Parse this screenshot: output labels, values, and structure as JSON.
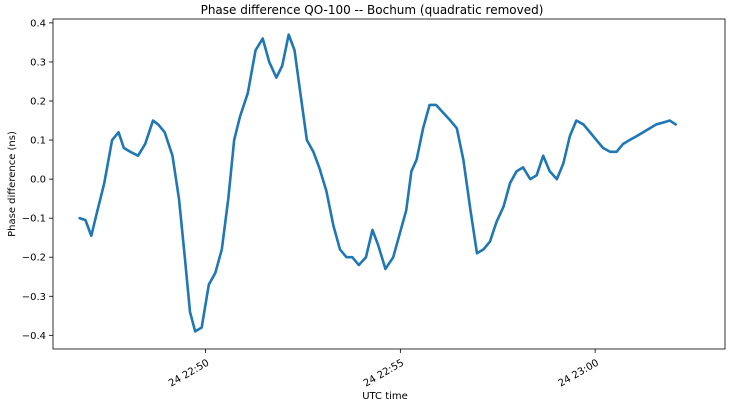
{
  "chart_data": {
    "type": "line",
    "title": "Phase difference QO-100 -- Bochum (quadratic removed)",
    "xlabel": "UTC time",
    "ylabel": "Phase difference (ns)",
    "xlim": [
      "24 22:46:05",
      "24 23:03:20"
    ],
    "ylim": [
      -0.435,
      0.41
    ],
    "x_ticks": [
      {
        "value": "24 22:50:00",
        "label": "24 22:50"
      },
      {
        "value": "24 22:55:00",
        "label": "24 22:55"
      },
      {
        "value": "24 23:00:00",
        "label": "24 23:00"
      }
    ],
    "y_ticks": [
      {
        "value": -0.4,
        "label": "−0.4"
      },
      {
        "value": -0.3,
        "label": "−0.3"
      },
      {
        "value": -0.2,
        "label": "−0.2"
      },
      {
        "value": -0.1,
        "label": "−0.1"
      },
      {
        "value": 0.0,
        "label": "0.0"
      },
      {
        "value": 0.1,
        "label": "0.1"
      },
      {
        "value": 0.2,
        "label": "0.2"
      },
      {
        "value": 0.3,
        "label": "0.3"
      },
      {
        "value": 0.4,
        "label": "0.4"
      }
    ],
    "grid": false,
    "series": [
      {
        "color": "#1f77b4",
        "x": [
          "24 22:46:46",
          "24 22:46:55",
          "24 22:47:04",
          "24 22:47:12",
          "24 22:47:24",
          "24 22:47:36",
          "24 22:47:46",
          "24 22:47:54",
          "24 22:48:04",
          "24 22:48:16",
          "24 22:48:27",
          "24 22:48:39",
          "24 22:48:47",
          "24 22:48:57",
          "24 22:49:09",
          "24 22:49:19",
          "24 22:49:28",
          "24 22:49:36",
          "24 22:49:44",
          "24 22:49:54",
          "24 22:50:05",
          "24 22:50:15",
          "24 22:50:25",
          "24 22:50:35",
          "24 22:50:44",
          "24 22:50:53",
          "24 22:51:05",
          "24 22:51:17",
          "24 22:51:28",
          "24 22:51:38",
          "24 22:51:49",
          "24 22:51:58",
          "24 22:52:08",
          "24 22:52:17",
          "24 22:52:26",
          "24 22:52:36",
          "24 22:52:46",
          "24 22:52:55",
          "24 22:53:06",
          "24 22:53:17",
          "24 22:53:27",
          "24 22:53:37",
          "24 22:53:46",
          "24 22:53:56",
          "24 22:54:07",
          "24 22:54:17",
          "24 22:54:26",
          "24 22:54:37",
          "24 22:54:49",
          "24 22:54:59",
          "24 22:55:09",
          "24 22:55:17",
          "24 22:55:25",
          "24 22:55:35",
          "24 22:55:45",
          "24 22:55:55",
          "24 22:56:06",
          "24 22:56:17",
          "24 22:56:27",
          "24 22:56:37",
          "24 22:56:48",
          "24 22:56:58",
          "24 22:57:08",
          "24 22:57:18",
          "24 22:57:28",
          "24 22:57:39",
          "24 22:57:49",
          "24 22:57:59",
          "24 22:58:09",
          "24 22:58:20",
          "24 22:58:30",
          "24 22:58:40",
          "24 22:58:50",
          "24 22:59:01",
          "24 22:59:11",
          "24 22:59:21",
          "24 22:59:31",
          "24 22:59:42",
          "24 22:59:52",
          "24 23:00:02",
          "24 23:00:12",
          "24 23:00:23",
          "24 23:00:33",
          "24 23:00:43",
          "24 23:00:53",
          "24 23:01:04",
          "24 23:01:14",
          "24 23:01:24",
          "24 23:01:34",
          "24 23:01:45",
          "24 23:01:55",
          "24 23:02:04"
        ],
        "values": [
          -0.1,
          -0.105,
          -0.145,
          -0.09,
          -0.01,
          0.1,
          0.12,
          0.08,
          0.07,
          0.06,
          0.09,
          0.15,
          0.14,
          0.12,
          0.06,
          -0.05,
          -0.2,
          -0.34,
          -0.39,
          -0.38,
          -0.27,
          -0.24,
          -0.18,
          -0.05,
          0.1,
          0.16,
          0.22,
          0.33,
          0.36,
          0.3,
          0.26,
          0.29,
          0.37,
          0.33,
          0.22,
          0.1,
          0.07,
          0.03,
          -0.03,
          -0.12,
          -0.18,
          -0.2,
          -0.2,
          -0.22,
          -0.2,
          -0.13,
          -0.17,
          -0.23,
          -0.2,
          -0.14,
          -0.08,
          0.02,
          0.05,
          0.13,
          0.19,
          0.19,
          0.17,
          0.15,
          0.13,
          0.05,
          -0.08,
          -0.19,
          -0.18,
          -0.16,
          -0.11,
          -0.07,
          -0.01,
          0.02,
          0.03,
          0.0,
          0.01,
          0.06,
          0.02,
          0.0,
          0.04,
          0.11,
          0.15,
          0.14,
          0.12,
          0.1,
          0.08,
          0.07,
          0.07,
          0.09,
          0.1,
          0.11,
          0.12,
          0.13,
          0.14,
          0.145,
          0.15,
          0.14
        ]
      }
    ]
  }
}
